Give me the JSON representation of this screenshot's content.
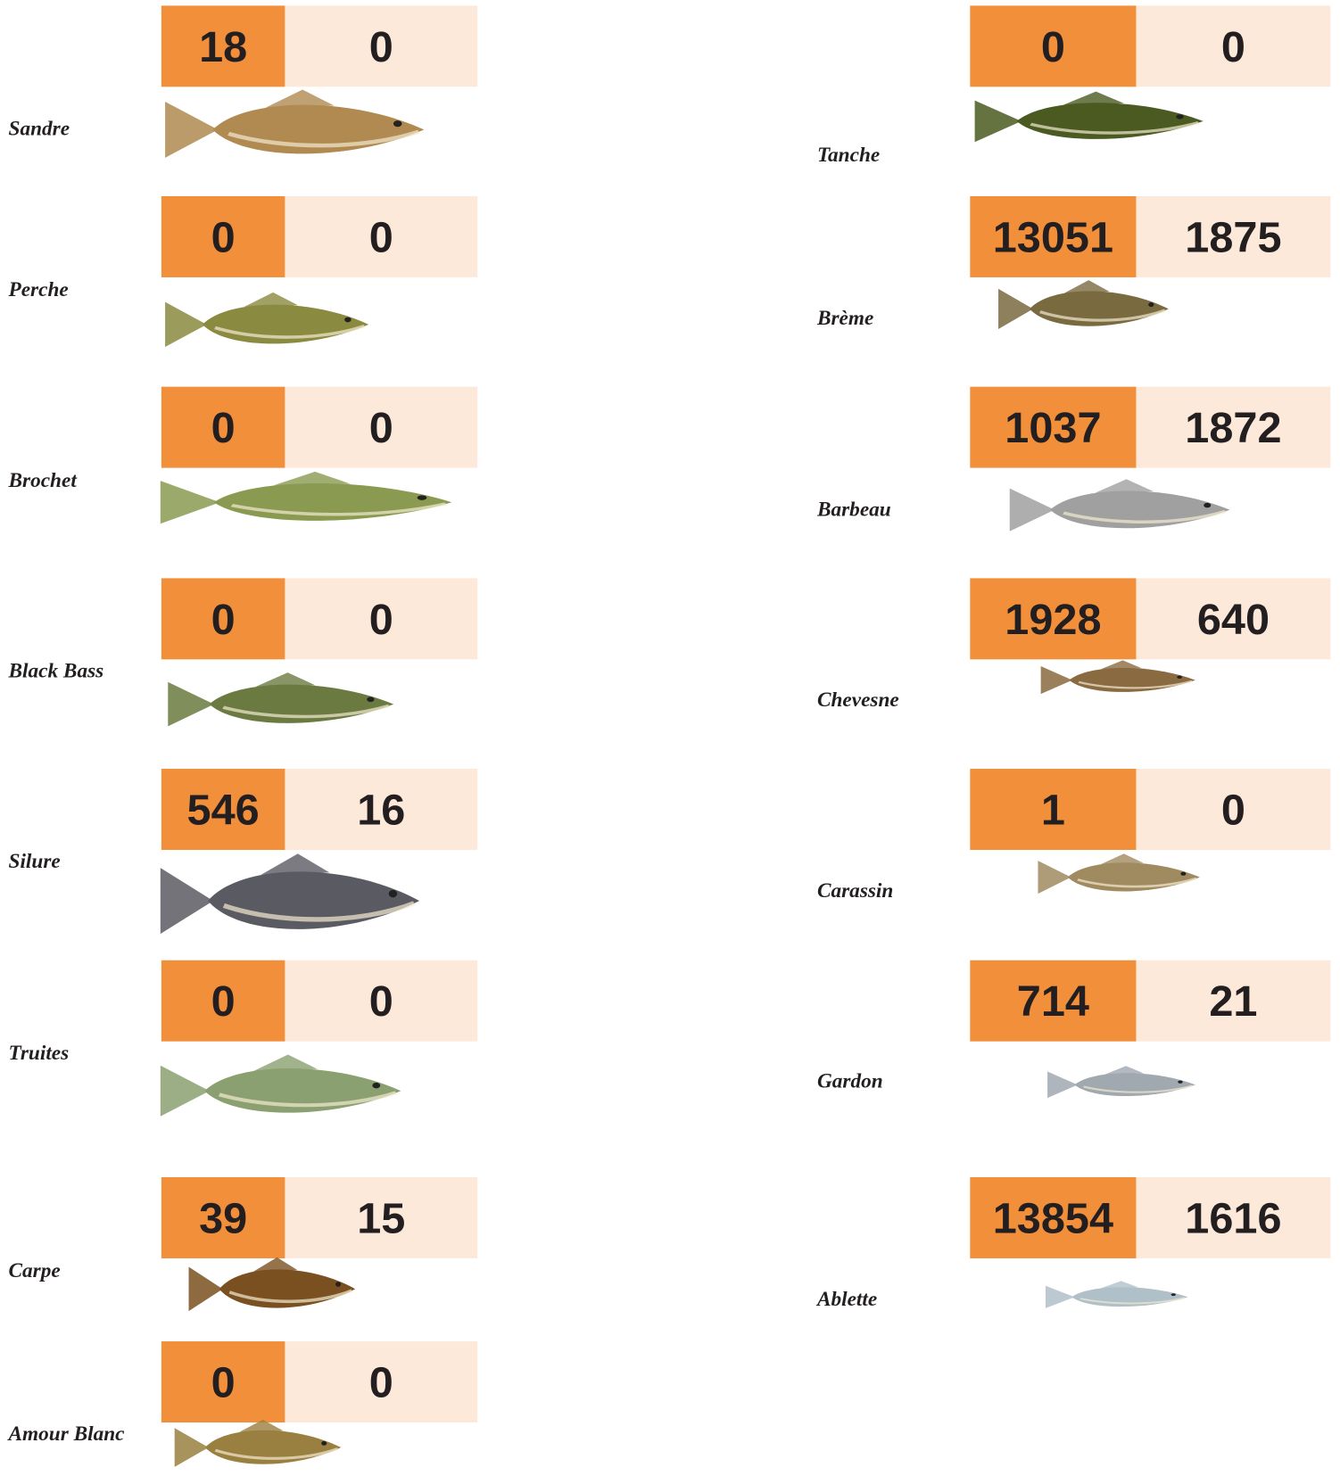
{
  "left": [
    {
      "name": "Sandre",
      "counts": [
        "18",
        "0"
      ]
    },
    {
      "name": "Perche",
      "counts": [
        "0",
        "0"
      ]
    },
    {
      "name": "Brochet",
      "counts": [
        "0",
        "0"
      ]
    },
    {
      "name": "Black Bass",
      "counts": [
        "0",
        "0"
      ]
    },
    {
      "name": "Silure",
      "counts": [
        "546",
        "16"
      ]
    },
    {
      "name": "Truites",
      "counts": [
        "0",
        "0"
      ]
    },
    {
      "name": "Carpe",
      "counts": [
        "39",
        "15"
      ]
    },
    {
      "name": "Amour Blanc",
      "counts": [
        "0",
        "0"
      ]
    }
  ],
  "right": [
    {
      "name": "Tanche",
      "counts": [
        "0",
        "0"
      ]
    },
    {
      "name": "Brème",
      "counts": [
        "13051",
        "1875"
      ]
    },
    {
      "name": "Barbeau",
      "counts": [
        "1037",
        "1872"
      ]
    },
    {
      "name": "Chevesne",
      "counts": [
        "1928",
        "640"
      ]
    },
    {
      "name": "Carassin",
      "counts": [
        "1",
        "0"
      ]
    },
    {
      "name": "Gardon",
      "counts": [
        "714",
        "21"
      ]
    },
    {
      "name": "Ablette",
      "counts": [
        "13854",
        "1616"
      ]
    }
  ]
}
